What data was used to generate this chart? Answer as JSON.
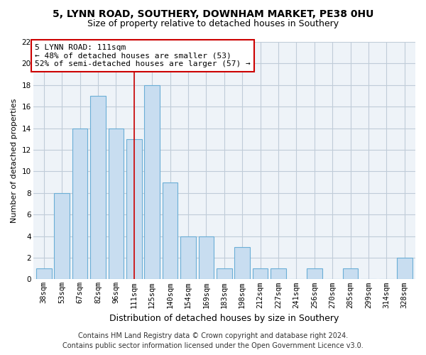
{
  "title1": "5, LYNN ROAD, SOUTHERY, DOWNHAM MARKET, PE38 0HU",
  "title2": "Size of property relative to detached houses in Southery",
  "xlabel": "Distribution of detached houses by size in Southery",
  "ylabel": "Number of detached properties",
  "bar_labels": [
    "38sqm",
    "53sqm",
    "67sqm",
    "82sqm",
    "96sqm",
    "111sqm",
    "125sqm",
    "140sqm",
    "154sqm",
    "169sqm",
    "183sqm",
    "198sqm",
    "212sqm",
    "227sqm",
    "241sqm",
    "256sqm",
    "270sqm",
    "285sqm",
    "299sqm",
    "314sqm",
    "328sqm"
  ],
  "bar_values": [
    1,
    8,
    14,
    17,
    14,
    13,
    18,
    9,
    4,
    4,
    1,
    3,
    1,
    1,
    0,
    1,
    0,
    1,
    0,
    0,
    2
  ],
  "bar_fill_color": "#c8ddf0",
  "bar_edge_color": "#6baed6",
  "highlight_bar_index": 5,
  "highlight_line_color": "#cc0000",
  "annotation_title": "5 LYNN ROAD: 111sqm",
  "annotation_line1": "← 48% of detached houses are smaller (53)",
  "annotation_line2": "52% of semi-detached houses are larger (57) →",
  "annotation_box_facecolor": "#ffffff",
  "annotation_box_edgecolor": "#cc0000",
  "ylim": [
    0,
    22
  ],
  "yticks": [
    0,
    2,
    4,
    6,
    8,
    10,
    12,
    14,
    16,
    18,
    20,
    22
  ],
  "footer1": "Contains HM Land Registry data © Crown copyright and database right 2024.",
  "footer2": "Contains public sector information licensed under the Open Government Licence v3.0.",
  "bg_color": "#ffffff",
  "plot_bg_color": "#eef3f8",
  "grid_color": "#c0ccd8",
  "title1_fontsize": 10,
  "title2_fontsize": 9,
  "xlabel_fontsize": 9,
  "ylabel_fontsize": 8,
  "tick_fontsize": 7.5,
  "annotation_fontsize": 8,
  "footer_fontsize": 7
}
